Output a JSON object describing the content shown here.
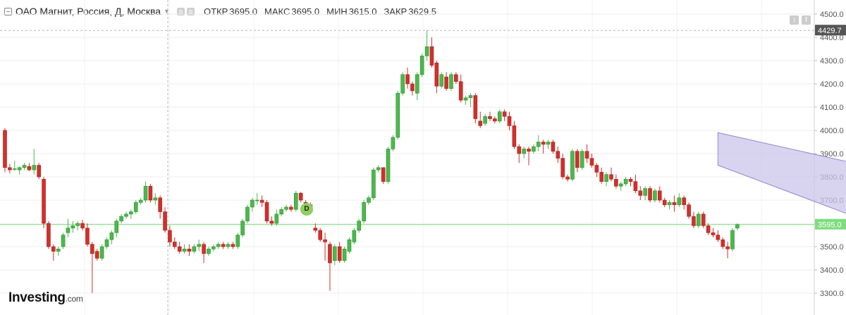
{
  "header": {
    "title": "ОАО Магнит, Россия, Д, Москва",
    "open_label": "ОТКР",
    "open_value": "3695.0",
    "high_label": "МАКС",
    "high_value": "3695.0",
    "low_label": "МИН",
    "low_value": "3615.0",
    "close_label": "ЗАКР",
    "close_value": "3629.5"
  },
  "corner_buttons": [
    "↕",
    "!"
  ],
  "logo": {
    "text": "Investing",
    "suffix": ".com"
  },
  "event_badge": "D",
  "colors": {
    "up": "#4cb84c",
    "down": "#d2302a",
    "channel_fill": "#cbc6ea",
    "channel_line": "#8e88cf",
    "price_line": "#7fdc7f"
  },
  "chart_data": {
    "type": "candlestick",
    "y_axis": {
      "ticks": [
        "4500.0",
        "4400.0",
        "4300.0",
        "4200.0",
        "4100.0",
        "4000.0",
        "3900.0",
        "3800.0",
        "3700.0",
        "3600.0",
        "3500.0",
        "3400.0",
        "3300.0"
      ],
      "range": [
        3260,
        4530
      ],
      "position": "right",
      "crosshair_label": "4429.7",
      "current_price_label": "3595.0"
    },
    "candles": [
      [
        4000,
        4010,
        3820,
        3840
      ],
      [
        3840,
        3855,
        3815,
        3830
      ],
      [
        3835,
        3870,
        3825,
        3835
      ],
      [
        3830,
        3845,
        3810,
        3840
      ],
      [
        3840,
        3860,
        3830,
        3850
      ],
      [
        3845,
        3860,
        3825,
        3830
      ],
      [
        3830,
        3920,
        3810,
        3850
      ],
      [
        3850,
        3860,
        3790,
        3800
      ],
      [
        3790,
        3800,
        3580,
        3600
      ],
      [
        3600,
        3610,
        3490,
        3500
      ],
      [
        3500,
        3510,
        3440,
        3480
      ],
      [
        3480,
        3500,
        3460,
        3490
      ],
      [
        3500,
        3560,
        3490,
        3550
      ],
      [
        3560,
        3620,
        3540,
        3580
      ],
      [
        3580,
        3610,
        3560,
        3590
      ],
      [
        3590,
        3610,
        3570,
        3600
      ],
      [
        3600,
        3615,
        3570,
        3580
      ],
      [
        3580,
        3600,
        3500,
        3510
      ],
      [
        3510,
        3520,
        3300,
        3470
      ],
      [
        3480,
        3490,
        3440,
        3450
      ],
      [
        3450,
        3510,
        3440,
        3500
      ],
      [
        3500,
        3540,
        3490,
        3530
      ],
      [
        3530,
        3570,
        3510,
        3560
      ],
      [
        3560,
        3620,
        3540,
        3610
      ],
      [
        3610,
        3640,
        3600,
        3630
      ],
      [
        3630,
        3650,
        3620,
        3640
      ],
      [
        3640,
        3660,
        3620,
        3650
      ],
      [
        3650,
        3700,
        3640,
        3690
      ],
      [
        3690,
        3710,
        3680,
        3700
      ],
      [
        3700,
        3780,
        3690,
        3760
      ],
      [
        3760,
        3770,
        3690,
        3700
      ],
      [
        3700,
        3730,
        3680,
        3710
      ],
      [
        3710,
        3720,
        3620,
        3650
      ],
      [
        3650,
        3670,
        3560,
        3570
      ],
      [
        3570,
        3590,
        3500,
        3520
      ],
      [
        3520,
        3540,
        3490,
        3500
      ],
      [
        3500,
        3520,
        3470,
        3480
      ],
      [
        3480,
        3510,
        3470,
        3490
      ],
      [
        3490,
        3510,
        3460,
        3480
      ],
      [
        3480,
        3510,
        3470,
        3500
      ],
      [
        3500,
        3530,
        3480,
        3510
      ],
      [
        3510,
        3520,
        3430,
        3470
      ],
      [
        3470,
        3500,
        3460,
        3490
      ],
      [
        3490,
        3510,
        3480,
        3500
      ],
      [
        3500,
        3520,
        3490,
        3510
      ],
      [
        3510,
        3520,
        3490,
        3500
      ],
      [
        3500,
        3520,
        3490,
        3510
      ],
      [
        3510,
        3520,
        3490,
        3500
      ],
      [
        3500,
        3560,
        3490,
        3550
      ],
      [
        3550,
        3620,
        3540,
        3610
      ],
      [
        3610,
        3680,
        3600,
        3670
      ],
      [
        3670,
        3710,
        3650,
        3700
      ],
      [
        3700,
        3730,
        3680,
        3700
      ],
      [
        3700,
        3720,
        3670,
        3690
      ],
      [
        3690,
        3700,
        3600,
        3610
      ],
      [
        3610,
        3630,
        3590,
        3600
      ],
      [
        3600,
        3660,
        3590,
        3640
      ],
      [
        3640,
        3670,
        3630,
        3660
      ],
      [
        3660,
        3680,
        3650,
        3670
      ],
      [
        3670,
        3680,
        3650,
        3660
      ],
      [
        3660,
        3740,
        3650,
        3730
      ],
      [
        3730,
        3735,
        3690,
        3700
      ],
      [
        3690,
        3700,
        3640,
        3680
      ],
      [
        3680,
        3690,
        3640,
        3650
      ],
      [
        3580,
        3600,
        3560,
        3570
      ],
      [
        3570,
        3580,
        3520,
        3530
      ],
      [
        3530,
        3560,
        3440,
        3520
      ],
      [
        3510,
        3520,
        3310,
        3430
      ],
      [
        3440,
        3510,
        3420,
        3500
      ],
      [
        3500,
        3520,
        3430,
        3440
      ],
      [
        3440,
        3500,
        3430,
        3490
      ],
      [
        3480,
        3540,
        3470,
        3530
      ],
      [
        3520,
        3580,
        3510,
        3570
      ],
      [
        3570,
        3620,
        3560,
        3610
      ],
      [
        3610,
        3700,
        3600,
        3690
      ],
      [
        3690,
        3720,
        3680,
        3710
      ],
      [
        3710,
        3840,
        3700,
        3830
      ],
      [
        3830,
        3850,
        3820,
        3840
      ],
      [
        3840,
        3840,
        3770,
        3780
      ],
      [
        3780,
        3930,
        3770,
        3920
      ],
      [
        3920,
        3980,
        3910,
        3970
      ],
      [
        3970,
        4170,
        3960,
        4160
      ],
      [
        4160,
        4250,
        4150,
        4240
      ],
      [
        4240,
        4270,
        4180,
        4200
      ],
      [
        4200,
        4210,
        4150,
        4170
      ],
      [
        4160,
        4250,
        4130,
        4240
      ],
      [
        4240,
        4330,
        4230,
        4320
      ],
      [
        4320,
        4430,
        4300,
        4360
      ],
      [
        4360,
        4400,
        4270,
        4280
      ],
      [
        4290,
        4300,
        4160,
        4190
      ],
      [
        4190,
        4250,
        4180,
        4240
      ],
      [
        4230,
        4250,
        4170,
        4180
      ],
      [
        4180,
        4250,
        4170,
        4240
      ],
      [
        4240,
        4250,
        4200,
        4210
      ],
      [
        4210,
        4240,
        4120,
        4130
      ],
      [
        4130,
        4150,
        4110,
        4140
      ],
      [
        4140,
        4160,
        4100,
        4150
      ],
      [
        4150,
        4160,
        4030,
        4050
      ],
      [
        4040,
        4080,
        4010,
        4020
      ],
      [
        4030,
        4070,
        4020,
        4060
      ],
      [
        4060,
        4080,
        4040,
        4050
      ],
      [
        4050,
        4060,
        4030,
        4040
      ],
      [
        4040,
        4090,
        4030,
        4080
      ],
      [
        4080,
        4090,
        4040,
        4060
      ],
      [
        4060,
        4080,
        4000,
        4020
      ],
      [
        4020,
        4040,
        3920,
        3930
      ],
      [
        3930,
        3940,
        3860,
        3900
      ],
      [
        3900,
        3930,
        3880,
        3920
      ],
      [
        3920,
        3930,
        3850,
        3910
      ],
      [
        3910,
        3940,
        3900,
        3930
      ],
      [
        3930,
        3980,
        3910,
        3950
      ],
      [
        3950,
        3960,
        3900,
        3940
      ],
      [
        3940,
        3960,
        3920,
        3950
      ],
      [
        3950,
        3960,
        3900,
        3910
      ],
      [
        3910,
        3930,
        3860,
        3880
      ],
      [
        3880,
        3900,
        3790,
        3800
      ],
      [
        3800,
        3810,
        3780,
        3790
      ],
      [
        3790,
        3920,
        3780,
        3910
      ],
      [
        3910,
        3920,
        3820,
        3840
      ],
      [
        3840,
        3920,
        3830,
        3910
      ],
      [
        3910,
        3940,
        3860,
        3880
      ],
      [
        3880,
        3900,
        3840,
        3850
      ],
      [
        3850,
        3860,
        3800,
        3820
      ],
      [
        3820,
        3840,
        3770,
        3780
      ],
      [
        3780,
        3820,
        3760,
        3810
      ],
      [
        3810,
        3840,
        3780,
        3790
      ],
      [
        3790,
        3810,
        3750,
        3760
      ],
      [
        3760,
        3780,
        3740,
        3770
      ],
      [
        3770,
        3800,
        3760,
        3790
      ],
      [
        3790,
        3800,
        3760,
        3780
      ],
      [
        3780,
        3810,
        3730,
        3740
      ],
      [
        3740,
        3760,
        3700,
        3720
      ],
      [
        3720,
        3760,
        3700,
        3750
      ],
      [
        3750,
        3760,
        3690,
        3700
      ],
      [
        3700,
        3750,
        3690,
        3740
      ],
      [
        3740,
        3760,
        3690,
        3700
      ],
      [
        3700,
        3710,
        3670,
        3680
      ],
      [
        3680,
        3700,
        3660,
        3690
      ],
      [
        3690,
        3720,
        3650,
        3680
      ],
      [
        3680,
        3730,
        3670,
        3710
      ],
      [
        3710,
        3720,
        3660,
        3680
      ],
      [
        3680,
        3690,
        3620,
        3630
      ],
      [
        3630,
        3650,
        3580,
        3590
      ],
      [
        3590,
        3650,
        3580,
        3640
      ],
      [
        3640,
        3650,
        3580,
        3590
      ],
      [
        3590,
        3600,
        3550,
        3560
      ],
      [
        3560,
        3580,
        3540,
        3550
      ],
      [
        3550,
        3570,
        3520,
        3530
      ],
      [
        3530,
        3540,
        3490,
        3500
      ],
      [
        3500,
        3520,
        3450,
        3490
      ],
      [
        3490,
        3580,
        3480,
        3570
      ],
      [
        3580,
        3600,
        3570,
        3595
      ]
    ],
    "channel": {
      "upper": [
        [
          147,
          3990
        ],
        [
          207,
          3710
        ]
      ],
      "lower": [
        [
          147,
          3850
        ],
        [
          207,
          3380
        ]
      ]
    },
    "grid": true,
    "legend": "none"
  }
}
